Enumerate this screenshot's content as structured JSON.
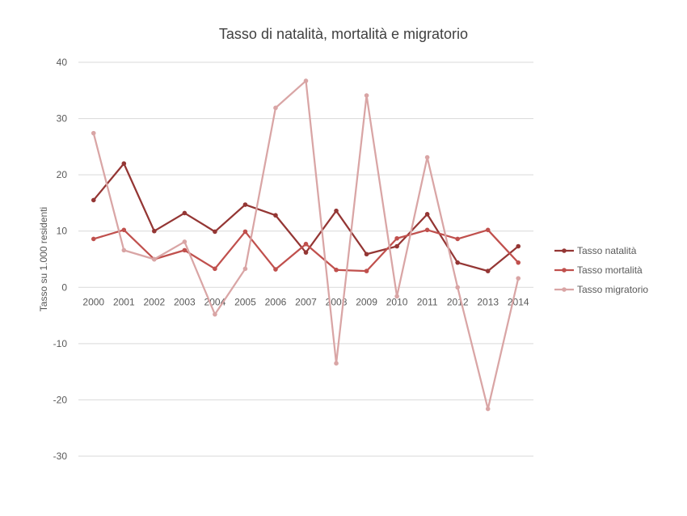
{
  "chart_data": {
    "type": "line",
    "title": "Tasso di natalità, mortalità e migratorio",
    "xlabel": "",
    "ylabel": "Tasso su 1.000 residenti",
    "ylim": [
      -30,
      40
    ],
    "yticks": [
      40,
      30,
      20,
      10,
      0,
      -10,
      -20,
      -30
    ],
    "categories": [
      "2000",
      "2001",
      "2002",
      "2003",
      "2004",
      "2005",
      "2006",
      "2007",
      "2008",
      "2009",
      "2010",
      "2011",
      "2012",
      "2013",
      "2014"
    ],
    "grid": true,
    "legend_position": "right",
    "series": [
      {
        "name": "Tasso natalità",
        "color": "#943634",
        "values": [
          15.5,
          22.0,
          10.0,
          13.2,
          9.9,
          14.7,
          12.8,
          6.2,
          13.6,
          5.9,
          7.3,
          13.0,
          4.4,
          2.9,
          7.3
        ]
      },
      {
        "name": "Tasso mortalità",
        "color": "#C0504D",
        "values": [
          8.6,
          10.2,
          5.0,
          6.6,
          3.3,
          9.9,
          3.2,
          7.7,
          3.1,
          2.9,
          8.7,
          10.2,
          8.6,
          10.2,
          4.4
        ]
      },
      {
        "name": "Tasso migratorio",
        "color": "#D9A5A5",
        "values": [
          27.4,
          6.6,
          5.0,
          8.1,
          -4.8,
          3.3,
          31.9,
          36.7,
          -13.5,
          34.1,
          -1.6,
          23.1,
          0.0,
          -21.6,
          1.6
        ]
      }
    ]
  }
}
